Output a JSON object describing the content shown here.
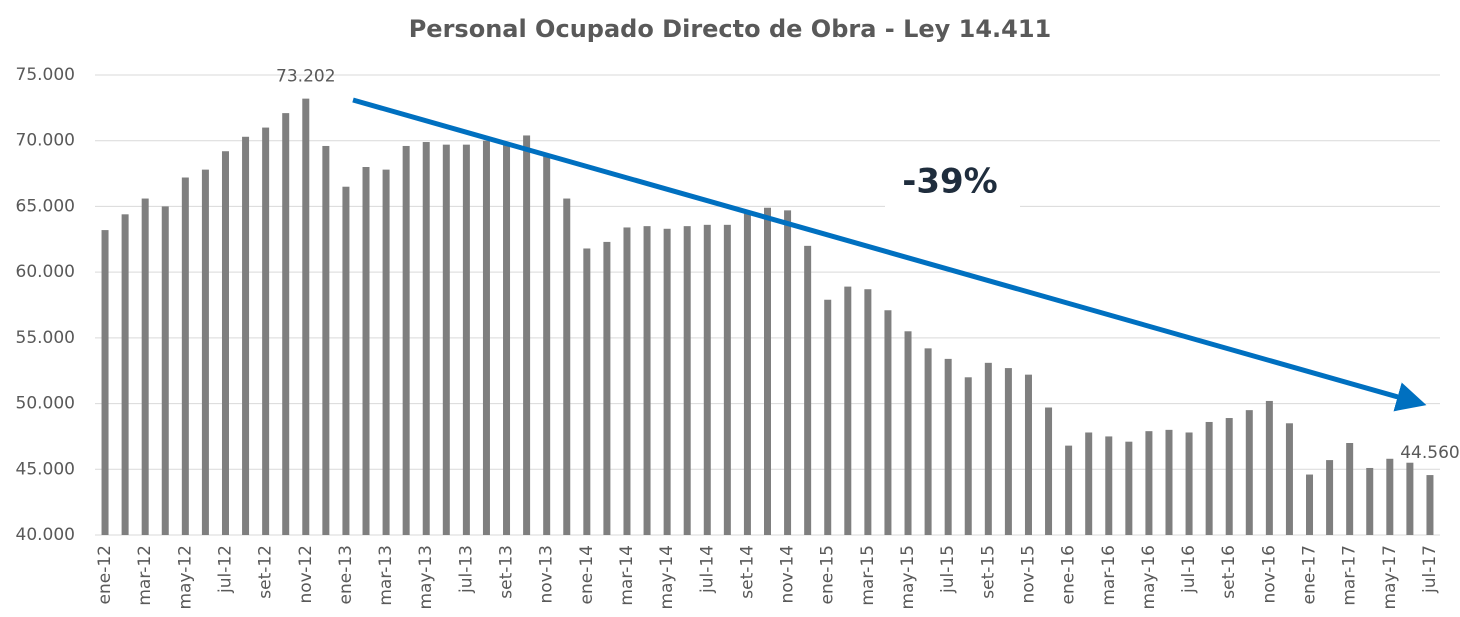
{
  "chart_data": {
    "type": "bar",
    "title": "Personal Ocupado Directo de Obra - Ley 14.411",
    "annotation": "-39%",
    "categories": [
      "ene-12",
      null,
      "mar-12",
      null,
      "may-12",
      null,
      "jul-12",
      null,
      "set-12",
      null,
      "nov-12",
      null,
      "ene-13",
      null,
      "mar-13",
      null,
      "may-13",
      null,
      "jul-13",
      null,
      "set-13",
      null,
      "nov-13",
      null,
      "ene-14",
      null,
      "mar-14",
      null,
      "may-14",
      null,
      "jul-14",
      null,
      "set-14",
      null,
      "nov-14",
      null,
      "ene-15",
      null,
      "mar-15",
      null,
      "may-15",
      null,
      "jul-15",
      null,
      "set-15",
      null,
      "nov-15",
      null,
      "ene-16",
      null,
      "mar-16",
      null,
      "may-16",
      null,
      "jul-16",
      null,
      "set-16",
      null,
      "nov-16",
      null,
      "ene-17",
      null,
      "mar-17",
      null,
      "may-17",
      null,
      "jul-17"
    ],
    "values": [
      63200,
      64400,
      65600,
      65000,
      67200,
      67800,
      69200,
      70300,
      71000,
      72100,
      73202,
      69600,
      66500,
      68000,
      67800,
      69600,
      69900,
      69700,
      69700,
      70000,
      69700,
      70400,
      68800,
      65600,
      61800,
      62300,
      63400,
      63500,
      63300,
      63500,
      63600,
      63600,
      64500,
      64900,
      64700,
      62000,
      57900,
      58900,
      58700,
      57100,
      55500,
      54200,
      53400,
      52000,
      53100,
      52700,
      52200,
      49700,
      46800,
      47800,
      47500,
      47100,
      47900,
      48000,
      47800,
      48600,
      48900,
      49500,
      50200,
      48500,
      44600,
      45700,
      47000,
      45100,
      45800,
      45500,
      44560
    ],
    "value_labels": [
      null,
      null,
      null,
      null,
      null,
      null,
      null,
      null,
      null,
      null,
      "73.202",
      null,
      null,
      null,
      null,
      null,
      null,
      null,
      null,
      null,
      null,
      null,
      null,
      null,
      null,
      null,
      null,
      null,
      null,
      null,
      null,
      null,
      null,
      null,
      null,
      null,
      null,
      null,
      null,
      null,
      null,
      null,
      null,
      null,
      null,
      null,
      null,
      null,
      null,
      null,
      null,
      null,
      null,
      null,
      null,
      null,
      null,
      null,
      null,
      null,
      null,
      null,
      null,
      null,
      null,
      null,
      "44.560"
    ],
    "color": "#7f7f7f",
    "ylim": [
      40000,
      75000
    ],
    "yticks": [
      {
        "value": 40000,
        "label": "40.000"
      },
      {
        "value": 45000,
        "label": "45.000"
      },
      {
        "value": 50000,
        "label": "50.000"
      },
      {
        "value": 55000,
        "label": "55.000"
      },
      {
        "value": 60000,
        "label": "60.000"
      },
      {
        "value": 65000,
        "label": "65.000"
      },
      {
        "value": 70000,
        "label": "70.000"
      },
      {
        "value": 75000,
        "label": "75.000"
      }
    ],
    "grid": true
  }
}
